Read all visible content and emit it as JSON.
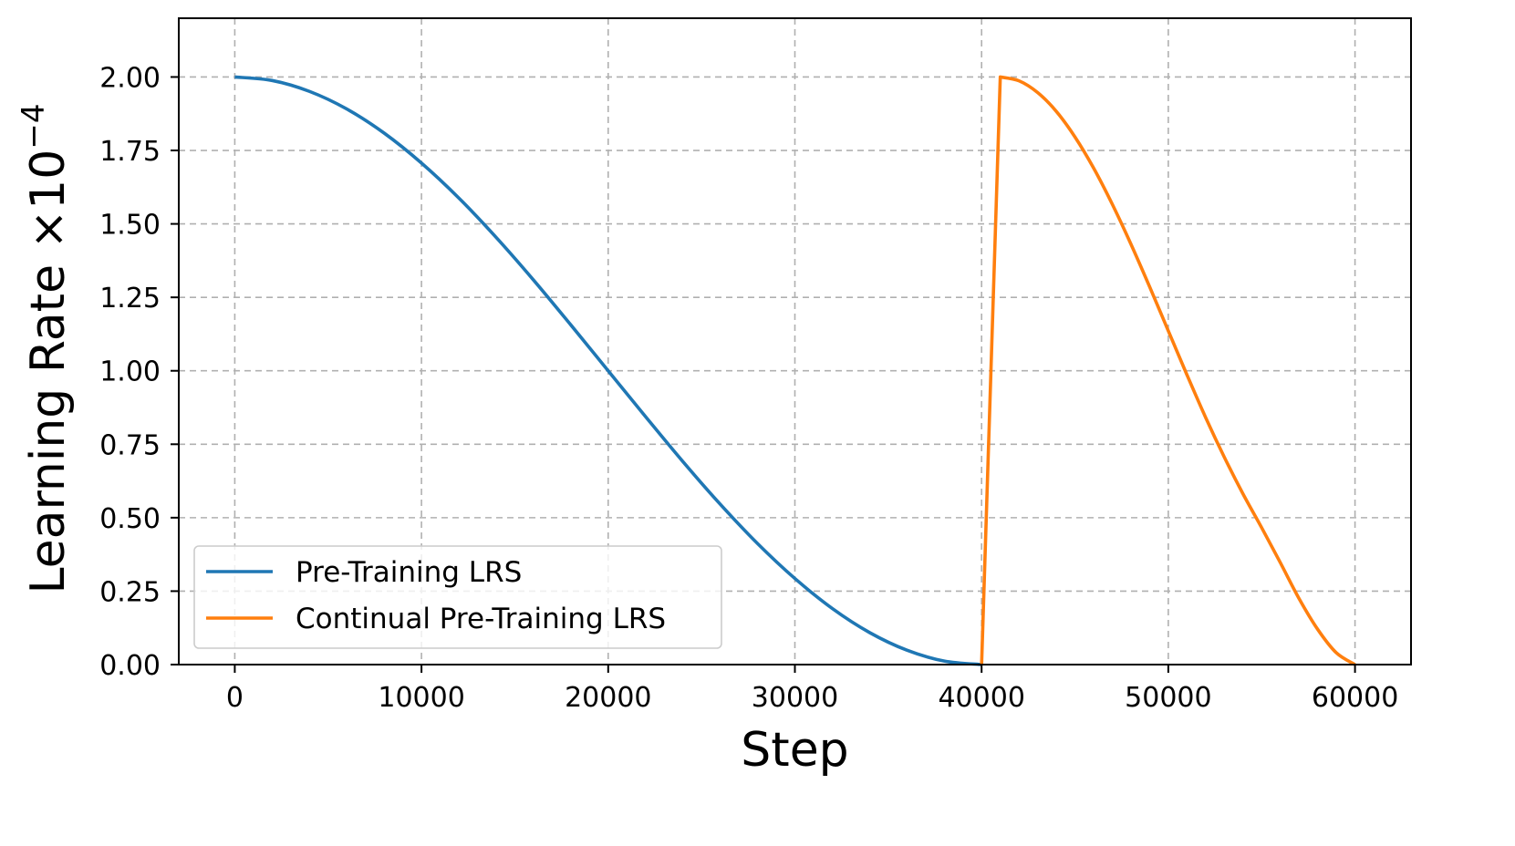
{
  "chart_data": {
    "type": "line",
    "title": "",
    "xlabel": "Step",
    "ylabel": "Learning Rate ×10",
    "ylabel_exponent": "−4",
    "xlim": [
      -3000,
      63000
    ],
    "ylim": [
      0,
      2.2
    ],
    "x_ticks": [
      0,
      10000,
      20000,
      30000,
      40000,
      50000,
      60000
    ],
    "y_ticks": [
      0,
      0.25,
      0.5,
      0.75,
      1.0,
      1.25,
      1.5,
      1.75,
      2.0
    ],
    "y_tick_decimals": 2,
    "grid": true,
    "grid_style": "dashed",
    "legend_position": "lower-left",
    "series": [
      {
        "name": "Pre-Training LRS",
        "color": "#1f77b4",
        "x": [
          0,
          2000,
          4000,
          6000,
          8000,
          10000,
          12000,
          14000,
          16000,
          18000,
          20000,
          22000,
          24000,
          26000,
          28000,
          30000,
          32000,
          34000,
          36000,
          38000,
          40000
        ],
        "y": [
          2.0,
          1.988,
          1.951,
          1.891,
          1.809,
          1.707,
          1.588,
          1.454,
          1.309,
          1.156,
          1.0,
          0.844,
          0.691,
          0.546,
          0.412,
          0.293,
          0.191,
          0.109,
          0.049,
          0.012,
          0.0
        ]
      },
      {
        "name": "Continual Pre-Training LRS",
        "color": "#ff7f0e",
        "x": [
          40000,
          41000,
          42000,
          43000,
          44000,
          45000,
          46000,
          47000,
          48000,
          49000,
          50000,
          51000,
          52000,
          53000,
          54000,
          55000,
          56000,
          57000,
          58000,
          59000,
          60000
        ],
        "y": [
          0.0,
          2.0,
          1.987,
          1.947,
          1.883,
          1.796,
          1.69,
          1.567,
          1.431,
          1.286,
          1.136,
          0.986,
          0.841,
          0.706,
          0.581,
          0.466,
          0.347,
          0.225,
          0.12,
          0.04,
          0.0
        ]
      }
    ]
  }
}
